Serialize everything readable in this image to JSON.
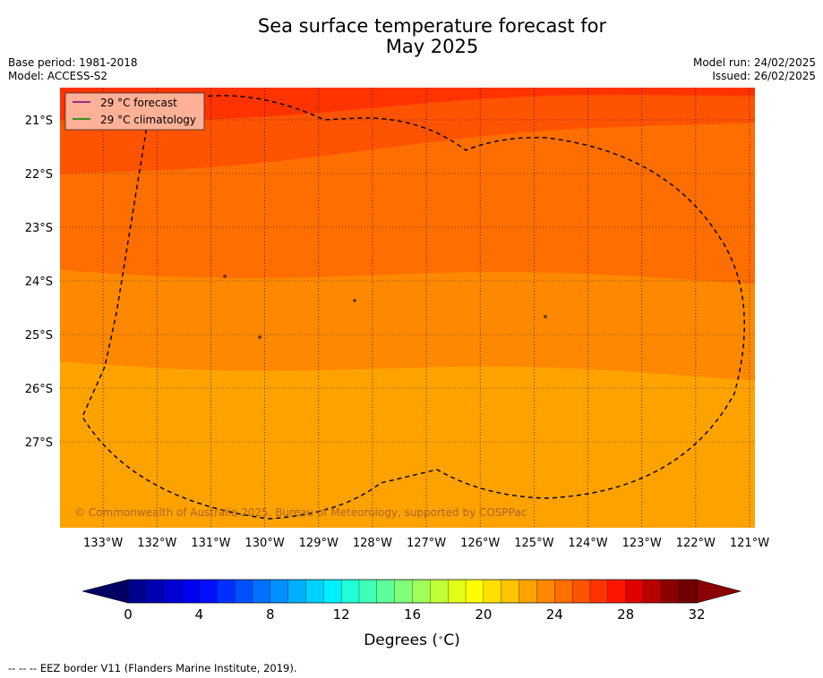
{
  "title_line1": "Sea surface temperature forecast for",
  "title_line2": "May 2025",
  "base_period": "Base period: 1981-2018",
  "model": "Model: ACCESS-S2",
  "model_run": "Model run: 24/02/2025",
  "issued": "Issued: 26/02/2025",
  "legend": {
    "forecast": "29 °C  forecast",
    "climatology": "29 °C  climatology",
    "forecast_color": "#800080",
    "climatology_color": "#008000"
  },
  "copyright": "© Commonwealth of Australia 2025, Bureau of Meteorology, supported by COSPPac",
  "footer": "--  --  -- EEZ border V11 (Flanders Marine Institute, 2019).",
  "chart_data": {
    "type": "heatmap",
    "lon_ticks": [
      -133,
      -132,
      -131,
      -130,
      -129,
      -128,
      -127,
      -126,
      -125,
      -124,
      -123,
      -122,
      -121
    ],
    "lon_tick_labels": [
      "133°W",
      "132°W",
      "131°W",
      "130°W",
      "129°W",
      "128°W",
      "127°W",
      "126°W",
      "125°W",
      "124°W",
      "123°W",
      "122°W",
      "121°W"
    ],
    "lat_ticks": [
      -21,
      -22,
      -23,
      -24,
      -25,
      -26,
      -27
    ],
    "lat_tick_labels": [
      "21°S",
      "22°S",
      "23°S",
      "24°S",
      "25°S",
      "26°S",
      "27°S"
    ],
    "xlim": [
      -133.8,
      -120.9
    ],
    "ylim": [
      -28.6,
      -20.4
    ],
    "temperature_bands": [
      {
        "level": "26–27 °C",
        "color": "#fea200",
        "lats": [
          -27.8,
          -27.3
        ]
      },
      {
        "level": "27–28 °C",
        "color": "#fe8800",
        "lats": [
          -25.5,
          -25.8
        ]
      },
      {
        "level": "28–29 °C",
        "color": "#fe6e00",
        "lats": [
          -23.8,
          -24.0
        ]
      },
      {
        "level": "29–30 °C",
        "color": "#fe5300",
        "lats": [
          -22.0,
          -21.0
        ]
      },
      {
        "level": "30–31 °C",
        "color": "#fe3300",
        "lats": [
          -21.0,
          -20.5
        ]
      }
    ],
    "colorbar": {
      "label": "Degrees ($^\\circ$C)",
      "label_text": "Degrees (",
      "label_unit": "C)",
      "ticks": [
        0,
        4,
        8,
        12,
        16,
        20,
        24,
        28,
        32
      ],
      "tick_labels": [
        "0",
        "4",
        "8",
        "12",
        "16",
        "20",
        "24",
        "28",
        "32"
      ],
      "min": 0,
      "max": 32,
      "step": 1,
      "low_extend_color": "#000064",
      "high_extend_color": "#8b0000",
      "colors": [
        "#00008f",
        "#0000b0",
        "#0000d0",
        "#0000ee",
        "#0010fe",
        "#0030fe",
        "#0050fe",
        "#0070fe",
        "#0090fe",
        "#00b0fe",
        "#00d0fe",
        "#00f0fe",
        "#20fed8",
        "#40feb8",
        "#60fe98",
        "#80fe78",
        "#a0fe58",
        "#c0fe38",
        "#e0fe18",
        "#fefe00",
        "#fee000",
        "#fec400",
        "#fea200",
        "#fe8800",
        "#fe6e00",
        "#fe5300",
        "#fe3300",
        "#fe1700",
        "#e00000",
        "#b80000",
        "#8b0000",
        "#700000"
      ]
    }
  }
}
